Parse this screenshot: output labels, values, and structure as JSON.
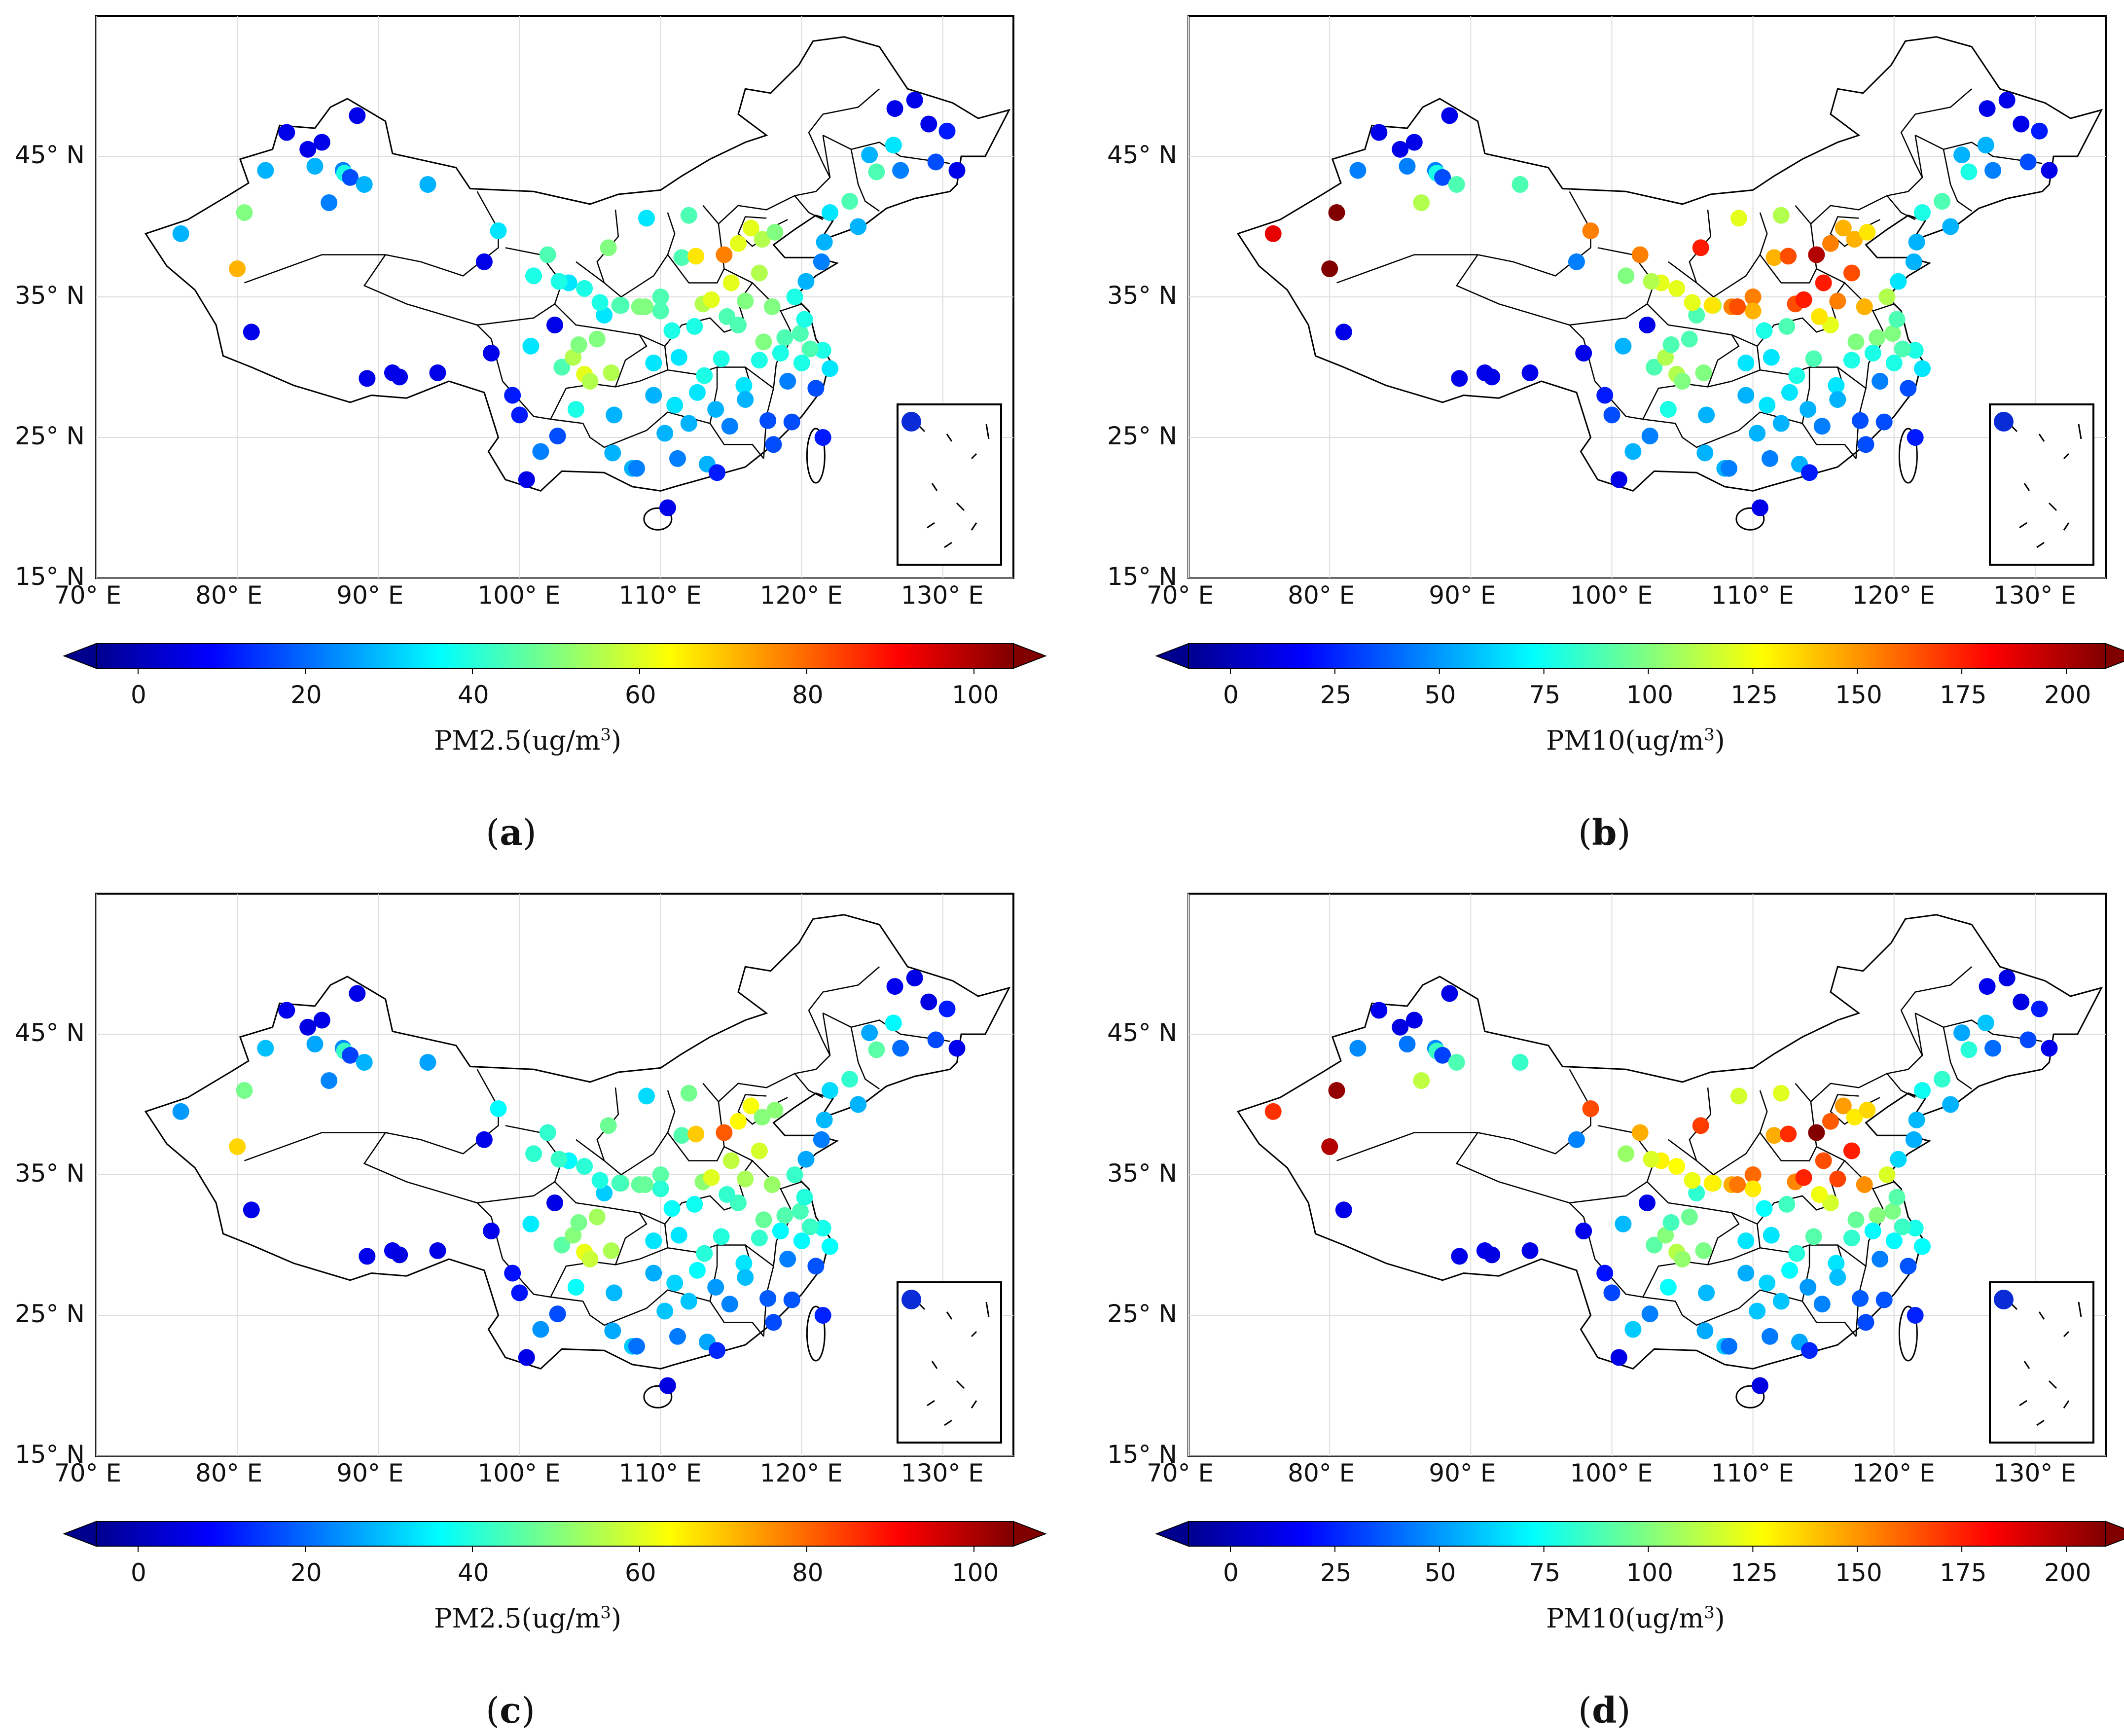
{
  "figure": {
    "panels": [
      {
        "id": "a",
        "label_open": "(",
        "label": "a",
        "label_close": ")",
        "variable": "PM2.5",
        "unit_text": "PM2.5(ug/m",
        "unit_sup": "3",
        "unit_close": ")",
        "cb_ticks": [
          "0",
          "20",
          "40",
          "60",
          "80",
          "100"
        ],
        "cb_max": 100
      },
      {
        "id": "b",
        "label_open": "(",
        "label": "b",
        "label_close": ")",
        "variable": "PM10",
        "unit_text": "PM10(ug/m",
        "unit_sup": "3",
        "unit_close": ")",
        "cb_ticks": [
          "0",
          "25",
          "50",
          "75",
          "100",
          "125",
          "150",
          "175",
          "200"
        ],
        "cb_max": 200
      },
      {
        "id": "c",
        "label_open": "(",
        "label": "c",
        "label_close": ")",
        "variable": "PM2.5",
        "unit_text": "PM2.5(ug/m",
        "unit_sup": "3",
        "unit_close": ")",
        "cb_ticks": [
          "0",
          "20",
          "40",
          "60",
          "80",
          "100"
        ],
        "cb_max": 100
      },
      {
        "id": "d",
        "label_open": "(",
        "label": "d",
        "label_close": ")",
        "variable": "PM10",
        "unit_text": "PM10(ug/m",
        "unit_sup": "3",
        "unit_close": ")",
        "cb_ticks": [
          "0",
          "25",
          "50",
          "75",
          "100",
          "125",
          "150",
          "175",
          "200"
        ],
        "cb_max": 200
      }
    ],
    "lat_labels": [
      "45° N",
      "35° N",
      "25° N",
      "15° N"
    ],
    "lat_values": [
      45,
      35,
      25,
      15
    ],
    "lon_labels": [
      "70° E",
      "80° E",
      "90° E",
      "100° E",
      "110° E",
      "120° E",
      "130° E"
    ],
    "lon_values": [
      70,
      80,
      90,
      100,
      110,
      120,
      130
    ],
    "lon_range": [
      70,
      135
    ],
    "lat_range": [
      15,
      55
    ],
    "colormap": "jet",
    "colormap_stops": [
      "#00008f",
      "#0000ff",
      "#0080ff",
      "#00ffff",
      "#80ff80",
      "#ffff00",
      "#ff8000",
      "#ff0000",
      "#800000"
    ],
    "border_color": "#000000",
    "grid_color": "#dddddd",
    "stations_pm25": [
      [
        76,
        39.5,
        30
      ],
      [
        80,
        37,
        70
      ],
      [
        80.5,
        41,
        50
      ],
      [
        81,
        32.5,
        10
      ],
      [
        82,
        44,
        30
      ],
      [
        83.5,
        46.7,
        10
      ],
      [
        85,
        45.5,
        10
      ],
      [
        85.5,
        44.3,
        30
      ],
      [
        86,
        46,
        10
      ],
      [
        86.5,
        41.7,
        25
      ],
      [
        87.5,
        44,
        25
      ],
      [
        87.6,
        43.8,
        40
      ],
      [
        88,
        43.5,
        20
      ],
      [
        88.5,
        47.9,
        10
      ],
      [
        89,
        43,
        30
      ],
      [
        89.2,
        29.2,
        10
      ],
      [
        91,
        29.6,
        10
      ],
      [
        91.5,
        29.3,
        10
      ],
      [
        93.5,
        43,
        30
      ],
      [
        94.2,
        29.6,
        10
      ],
      [
        97.5,
        37.5,
        10
      ],
      [
        98,
        31,
        10
      ],
      [
        98.5,
        39.7,
        35
      ],
      [
        99.5,
        28,
        15
      ],
      [
        100,
        26.6,
        15
      ],
      [
        100.5,
        22,
        10
      ],
      [
        100.8,
        31.5,
        35
      ],
      [
        101,
        36.5,
        40
      ],
      [
        101.5,
        24,
        25
      ],
      [
        102,
        38,
        45
      ],
      [
        102.5,
        33,
        10
      ],
      [
        102.7,
        25.1,
        20
      ],
      [
        103,
        30,
        45
      ],
      [
        103.5,
        36,
        35
      ],
      [
        103.8,
        30.7,
        55
      ],
      [
        104,
        27,
        40
      ],
      [
        104.2,
        31.6,
        50
      ],
      [
        104.6,
        29.5,
        60
      ],
      [
        105,
        29,
        55
      ],
      [
        105.5,
        32,
        50
      ],
      [
        106,
        33.7,
        35
      ],
      [
        106.3,
        38.5,
        50
      ],
      [
        106.5,
        29.6,
        55
      ],
      [
        106.7,
        26.6,
        30
      ],
      [
        107.2,
        34.4,
        45
      ],
      [
        108,
        22.8,
        30
      ],
      [
        108.5,
        34.3,
        50
      ],
      [
        109,
        40.6,
        35
      ],
      [
        109.5,
        30.3,
        35
      ],
      [
        110,
        35,
        45
      ],
      [
        110.3,
        25.3,
        30
      ],
      [
        110.5,
        20,
        10
      ],
      [
        110.8,
        32.6,
        40
      ],
      [
        111.2,
        23.5,
        25
      ],
      [
        111.5,
        37.8,
        45
      ],
      [
        112.5,
        37.9,
        65
      ],
      [
        112.6,
        28.2,
        35
      ],
      [
        113,
        34.5,
        55
      ],
      [
        113.3,
        23.1,
        30
      ],
      [
        113.6,
        34.8,
        60
      ],
      [
        114.3,
        30.6,
        40
      ],
      [
        114.5,
        38,
        75
      ],
      [
        114,
        22.5,
        15
      ],
      [
        115,
        36,
        60
      ],
      [
        115.5,
        33,
        45
      ],
      [
        115.9,
        28.7,
        35
      ],
      [
        116.4,
        39.9,
        60
      ],
      [
        117,
        36.7,
        55
      ],
      [
        117.2,
        39.1,
        55
      ],
      [
        117.3,
        31.8,
        50
      ],
      [
        118,
        24.5,
        20
      ],
      [
        118.8,
        32.1,
        45
      ],
      [
        119.3,
        26.1,
        20
      ],
      [
        119.5,
        35,
        40
      ],
      [
        120,
        30.3,
        40
      ],
      [
        120.3,
        36.1,
        30
      ],
      [
        121.5,
        31.2,
        40
      ],
      [
        121.6,
        38.9,
        30
      ],
      [
        121.5,
        25,
        15
      ],
      [
        122,
        29.9,
        35
      ],
      [
        123.4,
        41.8,
        45
      ],
      [
        122,
        41,
        35
      ],
      [
        124,
        40,
        30
      ],
      [
        125.3,
        43.9,
        45
      ],
      [
        126.5,
        45.8,
        35
      ],
      [
        127,
        44,
        25
      ],
      [
        128,
        49,
        10
      ],
      [
        129.5,
        44.6,
        20
      ],
      [
        130.3,
        46.8,
        15
      ],
      [
        131,
        44,
        10
      ],
      [
        126.6,
        48.4,
        10
      ],
      [
        129,
        47.3,
        10
      ],
      [
        124.8,
        45.1,
        30
      ],
      [
        121.4,
        37.5,
        25
      ],
      [
        118.1,
        39.6,
        50
      ],
      [
        115.5,
        38.8,
        60
      ],
      [
        112,
        40.8,
        45
      ],
      [
        108.3,
        22.8,
        25
      ],
      [
        106.6,
        23.9,
        30
      ],
      [
        119,
        29,
        25
      ],
      [
        121,
        28.5,
        20
      ],
      [
        117,
        30.5,
        40
      ],
      [
        113.9,
        27,
        30
      ],
      [
        111,
        27.3,
        35
      ],
      [
        109.5,
        28,
        30
      ],
      [
        114.9,
        25.8,
        25
      ],
      [
        116,
        27.7,
        30
      ],
      [
        117.6,
        26.2,
        20
      ],
      [
        118.5,
        31,
        40
      ],
      [
        120.6,
        31.3,
        45
      ],
      [
        119.9,
        32.4,
        45
      ],
      [
        120.2,
        33.4,
        40
      ],
      [
        117.9,
        34.3,
        50
      ],
      [
        116,
        34.7,
        50
      ],
      [
        114.7,
        33.6,
        45
      ],
      [
        112.4,
        32.9,
        40
      ],
      [
        111.3,
        30.7,
        35
      ],
      [
        113.1,
        29.4,
        40
      ],
      [
        112,
        26,
        30
      ],
      [
        110,
        34,
        45
      ],
      [
        108.9,
        34.3,
        50
      ],
      [
        107.1,
        34.4,
        45
      ],
      [
        105.7,
        34.6,
        40
      ],
      [
        104.6,
        35.6,
        40
      ],
      [
        102.8,
        36.1,
        40
      ]
    ],
    "stations_pm10": [
      [
        76,
        39.5,
        180
      ],
      [
        80,
        37,
        200
      ],
      [
        80.5,
        41,
        200
      ],
      [
        81,
        32.5,
        20
      ],
      [
        82,
        44,
        50
      ],
      [
        83.5,
        46.7,
        20
      ],
      [
        85,
        45.5,
        20
      ],
      [
        85.5,
        44.3,
        50
      ],
      [
        86,
        46,
        20
      ],
      [
        86.5,
        41.7,
        110
      ],
      [
        87.5,
        44,
        50
      ],
      [
        87.6,
        43.8,
        80
      ],
      [
        88,
        43.5,
        40
      ],
      [
        88.5,
        47.9,
        20
      ],
      [
        89,
        43,
        90
      ],
      [
        89.2,
        29.2,
        20
      ],
      [
        91,
        29.6,
        20
      ],
      [
        91.5,
        29.3,
        20
      ],
      [
        93.5,
        43,
        90
      ],
      [
        94.2,
        29.6,
        20
      ],
      [
        97.5,
        37.5,
        50
      ],
      [
        98,
        31,
        20
      ],
      [
        98.5,
        39.7,
        150
      ],
      [
        99.5,
        28,
        30
      ],
      [
        100,
        26.6,
        40
      ],
      [
        100.5,
        22,
        20
      ],
      [
        100.8,
        31.5,
        60
      ],
      [
        101,
        36.5,
        100
      ],
      [
        101.5,
        24,
        60
      ],
      [
        102,
        38,
        150
      ],
      [
        102.5,
        33,
        20
      ],
      [
        102.7,
        25.1,
        50
      ],
      [
        103,
        30,
        90
      ],
      [
        103.5,
        36,
        120
      ],
      [
        103.8,
        30.7,
        110
      ],
      [
        104,
        27,
        80
      ],
      [
        104.2,
        31.6,
        90
      ],
      [
        104.6,
        29.5,
        110
      ],
      [
        105,
        29,
        100
      ],
      [
        105.5,
        32,
        90
      ],
      [
        106,
        33.7,
        90
      ],
      [
        106.3,
        38.5,
        170
      ],
      [
        106.5,
        29.6,
        100
      ],
      [
        106.7,
        26.6,
        60
      ],
      [
        107.2,
        34.4,
        110
      ],
      [
        108,
        22.8,
        60
      ],
      [
        108.5,
        34.3,
        150
      ],
      [
        109,
        40.6,
        120
      ],
      [
        109.5,
        30.3,
        70
      ],
      [
        110,
        35,
        150
      ],
      [
        110.3,
        25.3,
        60
      ],
      [
        110.5,
        20,
        20
      ],
      [
        110.8,
        32.6,
        80
      ],
      [
        111.2,
        23.5,
        50
      ],
      [
        111.5,
        37.8,
        140
      ],
      [
        112.5,
        37.9,
        160
      ],
      [
        112.6,
        28.2,
        70
      ],
      [
        113,
        34.5,
        160
      ],
      [
        113.3,
        23.1,
        60
      ],
      [
        113.6,
        34.8,
        170
      ],
      [
        114.3,
        30.6,
        90
      ],
      [
        114.5,
        38,
        190
      ],
      [
        114,
        22.5,
        30
      ],
      [
        115,
        36,
        170
      ],
      [
        115.5,
        33,
        120
      ],
      [
        115.9,
        28.7,
        70
      ],
      [
        116.4,
        39.9,
        140
      ],
      [
        117,
        36.7,
        160
      ],
      [
        117.2,
        39.1,
        140
      ],
      [
        117.3,
        31.8,
        100
      ],
      [
        118,
        24.5,
        40
      ],
      [
        118.8,
        32.1,
        100
      ],
      [
        119.3,
        26.1,
        40
      ],
      [
        119.5,
        35,
        110
      ],
      [
        120,
        30.3,
        80
      ],
      [
        120.3,
        36.1,
        70
      ],
      [
        121.5,
        31.2,
        80
      ],
      [
        121.6,
        38.9,
        60
      ],
      [
        121.5,
        25,
        30
      ],
      [
        122,
        29.9,
        70
      ],
      [
        123.4,
        41.8,
        90
      ],
      [
        122,
        41,
        80
      ],
      [
        124,
        40,
        60
      ],
      [
        125.3,
        43.9,
        80
      ],
      [
        126.5,
        45.8,
        60
      ],
      [
        127,
        44,
        50
      ],
      [
        128,
        49,
        20
      ],
      [
        129.5,
        44.6,
        40
      ],
      [
        130.3,
        46.8,
        30
      ],
      [
        131,
        44,
        20
      ],
      [
        126.6,
        48.4,
        20
      ],
      [
        129,
        47.3,
        20
      ],
      [
        124.8,
        45.1,
        60
      ],
      [
        121.4,
        37.5,
        60
      ],
      [
        118.1,
        39.6,
        130
      ],
      [
        115.5,
        38.8,
        150
      ],
      [
        112,
        40.8,
        110
      ],
      [
        108.3,
        22.8,
        50
      ],
      [
        106.6,
        23.9,
        60
      ],
      [
        119,
        29,
        50
      ],
      [
        121,
        28.5,
        40
      ],
      [
        117,
        30.5,
        80
      ],
      [
        113.9,
        27,
        60
      ],
      [
        111,
        27.3,
        70
      ],
      [
        109.5,
        28,
        60
      ],
      [
        114.9,
        25.8,
        50
      ],
      [
        116,
        27.7,
        60
      ],
      [
        117.6,
        26.2,
        40
      ],
      [
        118.5,
        31,
        80
      ],
      [
        120.6,
        31.3,
        90
      ],
      [
        119.9,
        32.4,
        100
      ],
      [
        120.2,
        33.4,
        90
      ],
      [
        117.9,
        34.3,
        140
      ],
      [
        116,
        34.7,
        150
      ],
      [
        114.7,
        33.6,
        130
      ],
      [
        112.4,
        32.9,
        90
      ],
      [
        111.3,
        30.7,
        70
      ],
      [
        113.1,
        29.4,
        80
      ],
      [
        112,
        26,
        60
      ],
      [
        110,
        34,
        140
      ],
      [
        108.9,
        34.3,
        160
      ],
      [
        107.1,
        34.4,
        130
      ],
      [
        105.7,
        34.6,
        120
      ],
      [
        104.6,
        35.6,
        120
      ],
      [
        102.8,
        36.1,
        110
      ]
    ]
  }
}
